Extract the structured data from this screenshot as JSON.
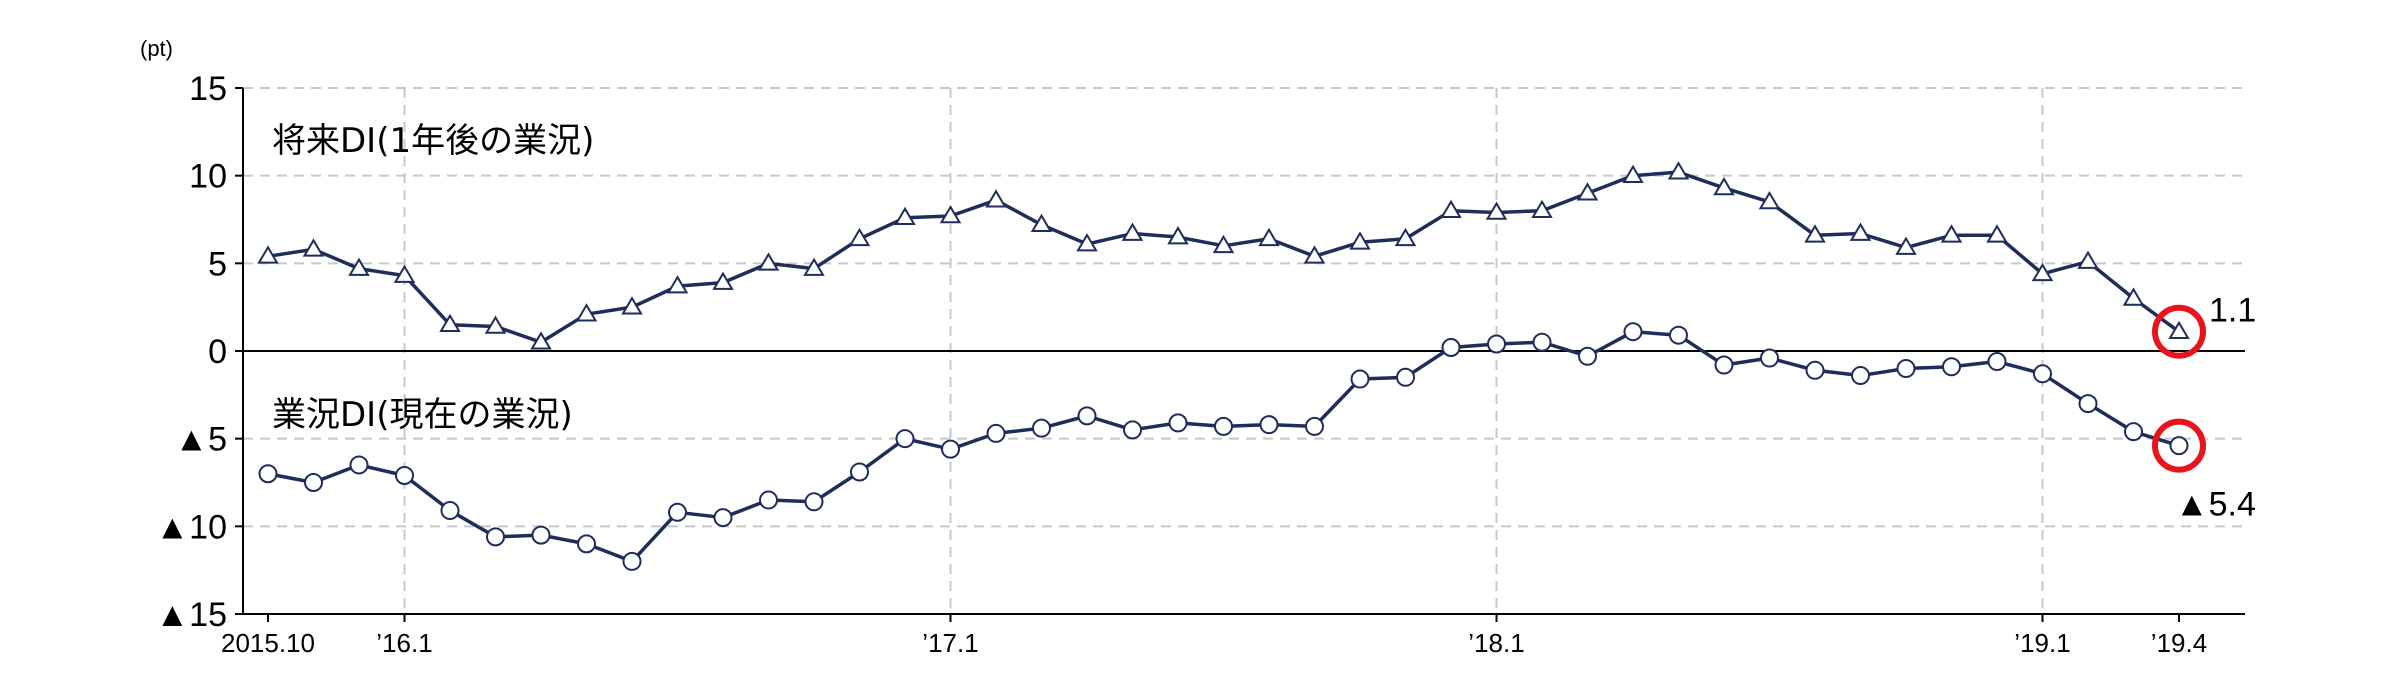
{
  "chart_data": {
    "type": "line",
    "unit_label": "(pt)",
    "ylim": [
      -15,
      15
    ],
    "y_ticks": [
      {
        "value": 15,
        "label": "15"
      },
      {
        "value": 10,
        "label": "10"
      },
      {
        "value": 5,
        "label": "5"
      },
      {
        "value": 0,
        "label": "0"
      },
      {
        "value": -5,
        "label": "▲5"
      },
      {
        "value": -10,
        "label": "▲10"
      },
      {
        "value": -15,
        "label": "▲15"
      }
    ],
    "x_ticks": [
      {
        "index": 0,
        "label": "2015.10"
      },
      {
        "index": 3,
        "label": "’16.1"
      },
      {
        "index": 15,
        "label": "’17.1"
      },
      {
        "index": 27,
        "label": "’18.1"
      },
      {
        "index": 39,
        "label": "’19.1"
      },
      {
        "index": 42,
        "label": "’19.4"
      }
    ],
    "vertical_gridlines": [
      3,
      15,
      27,
      39
    ],
    "grid": true,
    "n_points": 43,
    "series": [
      {
        "name": "将来DI(1年後の業況)",
        "marker": "triangle",
        "color": "#1f2d5c",
        "values": [
          5.4,
          5.8,
          4.7,
          4.3,
          1.5,
          1.4,
          0.5,
          2.1,
          2.5,
          3.7,
          3.9,
          5.0,
          4.7,
          6.4,
          7.6,
          7.7,
          8.6,
          7.2,
          6.1,
          6.7,
          6.5,
          6.0,
          6.4,
          5.4,
          6.2,
          6.4,
          8.0,
          7.9,
          8.0,
          9.0,
          10.0,
          10.2,
          9.3,
          8.5,
          6.6,
          6.7,
          5.9,
          6.6,
          6.6,
          4.4,
          5.1,
          3.0,
          1.1
        ],
        "end_label": "1.1"
      },
      {
        "name": "業況DI(現在の業況)",
        "marker": "circle",
        "color": "#1f2d5c",
        "values": [
          -7.0,
          -7.5,
          -6.5,
          -7.1,
          -9.1,
          -10.6,
          -10.5,
          -11.0,
          -12.0,
          -9.2,
          -9.5,
          -8.5,
          -8.6,
          -6.9,
          -5.0,
          -5.6,
          -4.7,
          -4.4,
          -3.7,
          -4.5,
          -4.1,
          -4.3,
          -4.2,
          -4.3,
          -1.6,
          -1.5,
          0.2,
          0.4,
          0.5,
          -0.3,
          1.1,
          0.9,
          -0.8,
          -0.4,
          -1.1,
          -1.4,
          -1.0,
          -0.9,
          -0.6,
          -1.3,
          -3.0,
          -4.6,
          -5.4
        ],
        "end_label": "▲5.4"
      }
    ],
    "highlight_color": "#e8141b"
  }
}
